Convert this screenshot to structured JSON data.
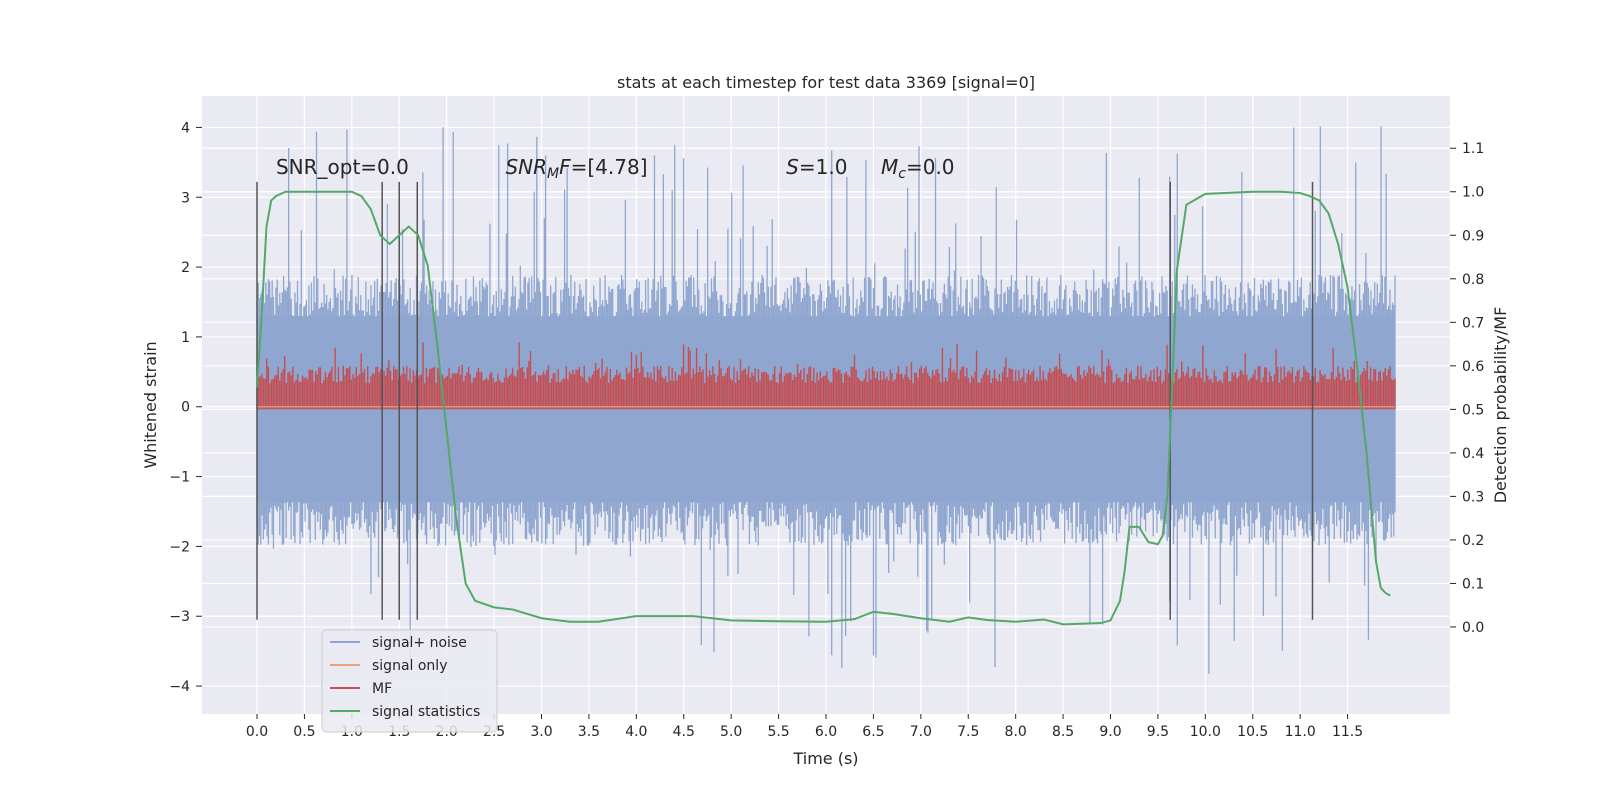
{
  "chart_data": {
    "type": "line",
    "title": "stats at each timestep for test data 3369 [signal=0]",
    "xlabel": "Time (s)",
    "ylabel": "Whitened strain",
    "y2label": "Detection probability/MF",
    "xlim": [
      -0.58,
      12.58
    ],
    "ylim": [
      -4.4,
      4.45
    ],
    "y2lim": [
      -0.2,
      1.22
    ],
    "xticks": [
      0.0,
      0.5,
      1.0,
      1.5,
      2.0,
      2.5,
      3.0,
      3.5,
      4.0,
      4.5,
      5.0,
      5.5,
      6.0,
      6.5,
      7.0,
      7.5,
      8.0,
      8.5,
      9.0,
      9.5,
      10.0,
      10.5,
      11.0,
      11.5
    ],
    "xtick_labels": [
      "0.0",
      "0.5",
      "1.0",
      "1.5",
      "2.0",
      "2.5",
      "3.0",
      "3.5",
      "4.0",
      "4.5",
      "5.0",
      "5.5",
      "6.0",
      "6.5",
      "7.0",
      "7.5",
      "8.0",
      "8.5",
      "9.0",
      "9.5",
      "10.0",
      "10.5",
      "11.0",
      "11.5"
    ],
    "yticks": [
      -4,
      -3,
      -2,
      -1,
      0,
      1,
      2,
      3,
      4
    ],
    "ytick_labels": [
      "−4",
      "−3",
      "−2",
      "−1",
      "0",
      "1",
      "2",
      "3",
      "4"
    ],
    "y2ticks": [
      0.0,
      0.1,
      0.2,
      0.3,
      0.4,
      0.5,
      0.6,
      0.7,
      0.8,
      0.9,
      1.0,
      1.1
    ],
    "y2tick_labels": [
      "0.0",
      "0.1",
      "0.2",
      "0.3",
      "0.4",
      "0.5",
      "0.6",
      "0.7",
      "0.8",
      "0.9",
      "1.0",
      "1.1"
    ],
    "grid": true,
    "legend_position": "lower-left",
    "annotations": [
      {
        "text": "SNR_opt=0.0",
        "x": 0.2,
        "y": 3.22
      },
      {
        "text": "SNR_MF=[4.78]",
        "x": 2.62,
        "y": 3.22
      },
      {
        "text": "S=1.0",
        "x": 5.58,
        "y": 3.22
      },
      {
        "text": "M_c=0.0",
        "x": 6.58,
        "y": 3.22
      }
    ],
    "vlines": {
      "x": [
        0.0,
        1.32,
        1.5,
        1.69,
        9.63,
        11.13
      ],
      "ymin": -3.05,
      "ymax": 3.22,
      "color": "#555555"
    },
    "series": [
      {
        "name": "signal+ noise",
        "color": "#8fa6d0",
        "axis": "left",
        "x_range": [
          0.0,
          12.0
        ],
        "band": {
          "upper_typical": 1.8,
          "upper_peak": 4.1,
          "lower_typical": -1.9,
          "lower_peak": -3.9
        }
      },
      {
        "name": "signal only",
        "color": "#e8a07f",
        "axis": "left",
        "x": [
          0.0,
          12.0
        ],
        "values": [
          0.0,
          0.0
        ]
      },
      {
        "name": "MF",
        "color": "#c44e52",
        "axis": "right",
        "x_range": [
          0.0,
          12.0
        ],
        "band": {
          "lower": 0.5,
          "upper_typical": 0.6,
          "upper_peak": 0.66
        }
      },
      {
        "name": "signal statistics",
        "color": "#55a868",
        "axis": "right",
        "x": [
          0.0,
          0.05,
          0.1,
          0.15,
          0.2,
          0.3,
          0.5,
          0.7,
          0.9,
          1.0,
          1.1,
          1.2,
          1.3,
          1.4,
          1.5,
          1.6,
          1.7,
          1.8,
          1.9,
          2.0,
          2.1,
          2.2,
          2.3,
          2.5,
          2.7,
          3.0,
          3.3,
          3.6,
          4.0,
          4.3,
          4.6,
          5.0,
          5.5,
          6.0,
          6.3,
          6.5,
          6.7,
          7.0,
          7.3,
          7.5,
          7.7,
          8.0,
          8.3,
          8.5,
          8.9,
          9.0,
          9.1,
          9.15,
          9.2,
          9.3,
          9.4,
          9.5,
          9.55,
          9.6,
          9.65,
          9.7,
          9.8,
          10.0,
          10.5,
          10.8,
          11.0,
          11.1,
          11.2,
          11.3,
          11.4,
          11.5,
          11.6,
          11.7,
          11.8,
          11.85,
          11.9,
          11.95
        ],
        "values": [
          0.55,
          0.72,
          0.92,
          0.98,
          0.99,
          1.0,
          1.0,
          1.0,
          1.0,
          1.0,
          0.99,
          0.96,
          0.9,
          0.88,
          0.9,
          0.92,
          0.9,
          0.83,
          0.65,
          0.45,
          0.25,
          0.1,
          0.06,
          0.045,
          0.04,
          0.02,
          0.012,
          0.012,
          0.025,
          0.025,
          0.025,
          0.015,
          0.013,
          0.012,
          0.018,
          0.035,
          0.03,
          0.02,
          0.012,
          0.022,
          0.016,
          0.012,
          0.017,
          0.006,
          0.009,
          0.015,
          0.06,
          0.13,
          0.23,
          0.23,
          0.195,
          0.19,
          0.21,
          0.3,
          0.55,
          0.82,
          0.97,
          0.995,
          1.0,
          1.0,
          0.997,
          0.99,
          0.98,
          0.95,
          0.88,
          0.78,
          0.6,
          0.4,
          0.15,
          0.09,
          0.078,
          0.072
        ]
      }
    ]
  }
}
